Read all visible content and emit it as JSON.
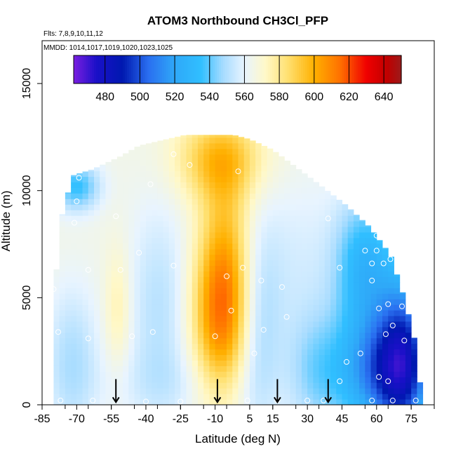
{
  "chart_data": {
    "type": "heatmap",
    "title": "ATOM3 Northbound CH3Cl_PFP",
    "flights_label": "Flts: 7,8,9,10,11,12",
    "dates_label": "MMDD: 1014,1017,1019,1020,1023,1025",
    "xlabel": "Latitude (deg N)",
    "ylabel": "Altitude (m)",
    "xlim": [
      -85,
      85
    ],
    "ylim": [
      0,
      17000
    ],
    "x_ticks": [
      -85,
      -70,
      -55,
      -40,
      -25,
      -10,
      5,
      15,
      30,
      45,
      60,
      75
    ],
    "y_ticks": [
      0,
      5000,
      10000,
      15000
    ],
    "colorbar": {
      "range": [
        462,
        650
      ],
      "ticks": [
        480,
        500,
        520,
        540,
        560,
        580,
        600,
        620,
        640
      ],
      "stops": [
        {
          "v": 462,
          "c": "#7b1fe0"
        },
        {
          "v": 475,
          "c": "#1a10c8"
        },
        {
          "v": 490,
          "c": "#0018b0"
        },
        {
          "v": 505,
          "c": "#2a6ff0"
        },
        {
          "v": 520,
          "c": "#2fa8f8"
        },
        {
          "v": 535,
          "c": "#30bfff"
        },
        {
          "v": 548,
          "c": "#a8dcff"
        },
        {
          "v": 560,
          "c": "#e8f4ff"
        },
        {
          "v": 572,
          "c": "#fff8c8"
        },
        {
          "v": 585,
          "c": "#ffe070"
        },
        {
          "v": 600,
          "c": "#ffb000"
        },
        {
          "v": 615,
          "c": "#ff7000"
        },
        {
          "v": 630,
          "c": "#f00000"
        },
        {
          "v": 642,
          "c": "#c00000"
        },
        {
          "v": 650,
          "c": "#9b1b1b"
        }
      ]
    },
    "arrows_latitude": [
      -53,
      -9,
      17,
      39
    ],
    "samples": [
      {
        "lat": -77,
        "alt": 200
      },
      {
        "lat": -63,
        "alt": 200
      },
      {
        "lat": -40,
        "alt": 150
      },
      {
        "lat": -25,
        "alt": 150
      },
      {
        "lat": 4,
        "alt": 200
      },
      {
        "lat": 17,
        "alt": 200
      },
      {
        "lat": 30,
        "alt": 200
      },
      {
        "lat": 37,
        "alt": 200
      },
      {
        "lat": 58,
        "alt": 200
      },
      {
        "lat": 67,
        "alt": 200
      },
      {
        "lat": 77,
        "alt": 200
      },
      {
        "lat": -78,
        "alt": 3400
      },
      {
        "lat": -65,
        "alt": 3100
      },
      {
        "lat": -37,
        "alt": 3400
      },
      {
        "lat": -46,
        "alt": 3200
      },
      {
        "lat": -10,
        "alt": 3200
      },
      {
        "lat": 11,
        "alt": 3500
      },
      {
        "lat": 21,
        "alt": 4100
      },
      {
        "lat": -3,
        "alt": 4400
      },
      {
        "lat": 7,
        "alt": 2400
      },
      {
        "lat": 47,
        "alt": 2000
      },
      {
        "lat": 53,
        "alt": 2400
      },
      {
        "lat": 61,
        "alt": 1300
      },
      {
        "lat": 65,
        "alt": 1100
      },
      {
        "lat": 64,
        "alt": 3300
      },
      {
        "lat": 67,
        "alt": 3700
      },
      {
        "lat": 61,
        "alt": 4500
      },
      {
        "lat": 71,
        "alt": 4600
      },
      {
        "lat": 72,
        "alt": 3000
      },
      {
        "lat": 65,
        "alt": 4700
      },
      {
        "lat": 44,
        "alt": 1100
      },
      {
        "lat": -80,
        "alt": 5400
      },
      {
        "lat": -65,
        "alt": 6300
      },
      {
        "lat": -51,
        "alt": 6300
      },
      {
        "lat": -28,
        "alt": 6500
      },
      {
        "lat": -5,
        "alt": 6000
      },
      {
        "lat": 2,
        "alt": 6400
      },
      {
        "lat": 10,
        "alt": 5800
      },
      {
        "lat": 19,
        "alt": 5500
      },
      {
        "lat": 44,
        "alt": 6400
      },
      {
        "lat": 58,
        "alt": 6600
      },
      {
        "lat": 58,
        "alt": 5800
      },
      {
        "lat": 63,
        "alt": 6600
      },
      {
        "lat": 66,
        "alt": 6800
      },
      {
        "lat": 72,
        "alt": 6700
      },
      {
        "lat": 55,
        "alt": 7200
      },
      {
        "lat": 60,
        "alt": 7200
      },
      {
        "lat": -71,
        "alt": 8500
      },
      {
        "lat": -53,
        "alt": 8800
      },
      {
        "lat": 39,
        "alt": 8700
      },
      {
        "lat": 60,
        "alt": 7900
      },
      {
        "lat": -69,
        "alt": 10600
      },
      {
        "lat": -28,
        "alt": 11700
      },
      {
        "lat": -38,
        "alt": 10300
      },
      {
        "lat": -21,
        "alt": 11200
      },
      {
        "lat": 0,
        "alt": 10900
      },
      {
        "lat": -70,
        "alt": 9500
      },
      {
        "lat": -43,
        "alt": 7100
      }
    ]
  }
}
